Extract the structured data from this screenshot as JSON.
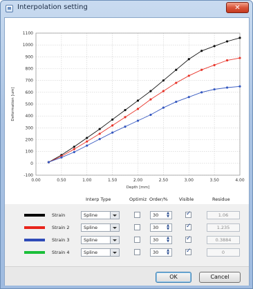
{
  "window": {
    "title": "Interpolation setting",
    "close_label": "✕"
  },
  "chart_data": {
    "type": "line",
    "xlabel": "Depth [mm]",
    "ylabel": "Deformation [um]",
    "xlim": [
      0,
      4
    ],
    "ylim": [
      -100,
      1100
    ],
    "x_ticks": [
      "0.00",
      "0.50",
      "1.00",
      "1.50",
      "2.00",
      "2.50",
      "3.00",
      "3.50",
      "4.00"
    ],
    "y_ticks": [
      "-100",
      "0",
      "100",
      "200",
      "300",
      "400",
      "500",
      "600",
      "700",
      "800",
      "900",
      "1000",
      "1100"
    ],
    "x": [
      0.25,
      0.5,
      0.75,
      1.0,
      1.25,
      1.5,
      1.75,
      2.0,
      2.25,
      2.5,
      2.75,
      3.0,
      3.25,
      3.5,
      3.75,
      4.0
    ],
    "series": [
      {
        "name": "Strain",
        "color": "#111111",
        "values": [
          10,
          70,
          140,
          215,
          290,
          370,
          450,
          530,
          610,
          700,
          790,
          880,
          950,
          990,
          1030,
          1060
        ]
      },
      {
        "name": "Strain 2",
        "color": "#e8352a",
        "values": [
          10,
          60,
          120,
          185,
          250,
          320,
          390,
          460,
          540,
          610,
          680,
          740,
          790,
          830,
          870,
          890
        ]
      },
      {
        "name": "Strain 3",
        "color": "#3558c0",
        "values": [
          10,
          50,
          95,
          150,
          205,
          260,
          310,
          360,
          410,
          470,
          520,
          560,
          600,
          625,
          640,
          650
        ]
      }
    ],
    "grid": true
  },
  "table": {
    "headers": {
      "type": "Interp Type",
      "optimize": "Optimiz",
      "order": "Order/%",
      "visible": "Visible",
      "residue": "Residue"
    },
    "rows": [
      {
        "name": "Strain",
        "color": "#000000",
        "type": "Spline",
        "optimize": false,
        "order": "30",
        "visible": true,
        "residue": "1.06"
      },
      {
        "name": "Strain 2",
        "color": "#e8241b",
        "type": "Spline",
        "optimize": false,
        "order": "30",
        "visible": true,
        "residue": "1.235"
      },
      {
        "name": "Strain 3",
        "color": "#2f4bb8",
        "type": "Spline",
        "optimize": false,
        "order": "30",
        "visible": true,
        "residue": "0.3884"
      },
      {
        "name": "Strain 4",
        "color": "#1bbf3a",
        "type": "Spline",
        "optimize": false,
        "order": "30",
        "visible": true,
        "residue": "0"
      }
    ]
  },
  "buttons": {
    "ok": "OK",
    "cancel": "Cancel"
  }
}
